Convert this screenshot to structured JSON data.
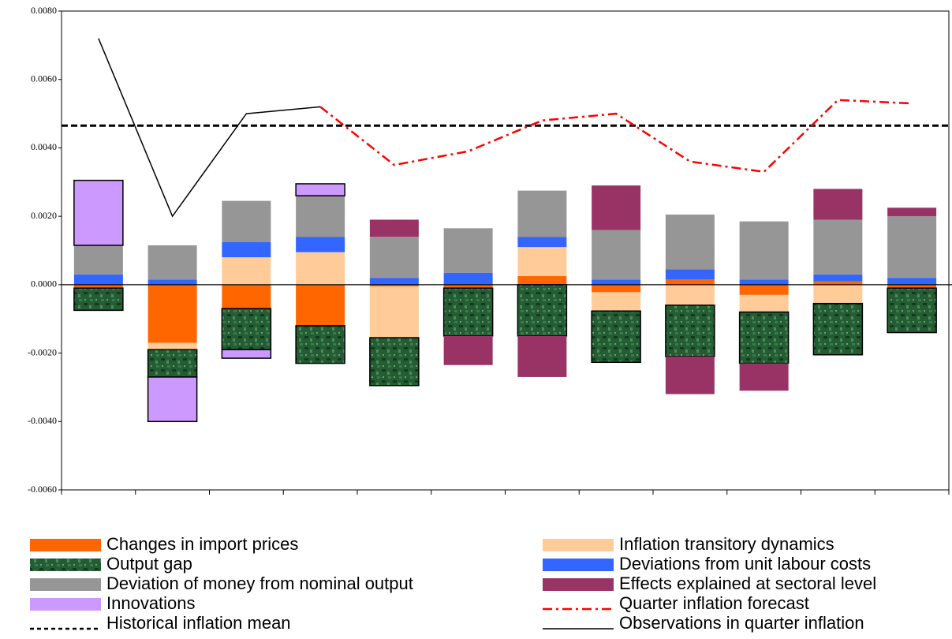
{
  "chart_data": {
    "type": "bar",
    "categories": [
      null,
      null,
      null,
      null,
      null,
      null,
      null,
      null,
      null,
      null,
      null,
      null
    ],
    "ylim": [
      -0.006,
      0.008
    ],
    "yticks": [
      {
        "value": -0.006,
        "label": "-0.0060"
      },
      {
        "value": -0.004,
        "label": "-0.0040"
      },
      {
        "value": -0.002,
        "label": "-0.0020"
      },
      {
        "value": 0,
        "label": "0.0000"
      },
      {
        "value": 0.002,
        "label": "0.0020"
      },
      {
        "value": 0.004,
        "label": "0.0040"
      },
      {
        "value": 0.006,
        "label": "0.0060"
      },
      {
        "value": 0.008,
        "label": "0.0080"
      }
    ],
    "series": [
      {
        "name": "Changes in import prices",
        "type": "bar",
        "color": "#ff6600",
        "values": [
          -0.0001,
          -0.0017,
          -0.0007,
          -0.0012,
          -5e-05,
          -0.0001,
          0.00025,
          -0.00022,
          0.00015,
          -0.0003,
          0.0001,
          -0.0001
        ]
      },
      {
        "name": "Output gap",
        "type": "bar",
        "color": "#245c34",
        "values": [
          -0.00065,
          -0.0008,
          -0.0012,
          -0.0011,
          -0.0014,
          -0.0014,
          -0.0015,
          -0.0015,
          -0.0015,
          -0.0015,
          -0.0015,
          -0.0013
        ]
      },
      {
        "name": "Deviation of money from nominal output",
        "type": "bar",
        "color": "#969696",
        "values": [
          0.00085,
          0.001,
          0.0012,
          0.0012,
          0.0012,
          0.0013,
          0.00135,
          0.00145,
          0.0016,
          0.0017,
          0.0016,
          0.0018
        ]
      },
      {
        "name": "Innovations",
        "type": "bar",
        "color": "#cc99ff",
        "values": [
          0.0019,
          -0.0013,
          -0.00025,
          0.00035,
          0,
          0,
          0,
          0,
          0,
          0,
          0,
          0
        ]
      },
      {
        "name": "Historical inflation mean",
        "type": "hline",
        "color": "#000000",
        "value": 0.00465
      },
      {
        "name": "Inflation transitory dynamics",
        "type": "bar",
        "color": "#ffcc99",
        "values": [
          0,
          -0.0002,
          0.0008,
          0.00095,
          -0.0015,
          0,
          0.00085,
          -0.00055,
          -0.0006,
          -0.0005,
          -0.00055,
          0
        ]
      },
      {
        "name": "Deviations from unit labour costs",
        "type": "bar",
        "color": "#3366ff",
        "values": [
          0.0003,
          0.00015,
          0.00045,
          0.00045,
          0.0002,
          0.00035,
          0.0003,
          0.00015,
          0.0003,
          0.00015,
          0.0002,
          0.0002
        ]
      },
      {
        "name": "Effects explained at sectoral level",
        "type": "bar",
        "color": "#993366",
        "values": [
          0,
          0,
          0,
          0,
          0.0005,
          -0.00085,
          -0.0012,
          0.0013,
          -0.0011,
          -0.0008,
          0.0009,
          0.00025
        ]
      },
      {
        "name": "Quarter inflation forecast",
        "type": "line",
        "color": "#ff0000",
        "values": [
          null,
          null,
          null,
          0.0052,
          0.0035,
          0.0039,
          0.0048,
          0.005,
          0.0036,
          0.0033,
          0.0054,
          0.0053
        ]
      },
      {
        "name": "Observations in quarter inflation",
        "type": "line",
        "color": "#000000",
        "values": [
          0.0072,
          0.002,
          0.005,
          0.0052,
          null,
          null,
          null,
          null,
          null,
          null,
          null,
          null
        ]
      }
    ]
  }
}
